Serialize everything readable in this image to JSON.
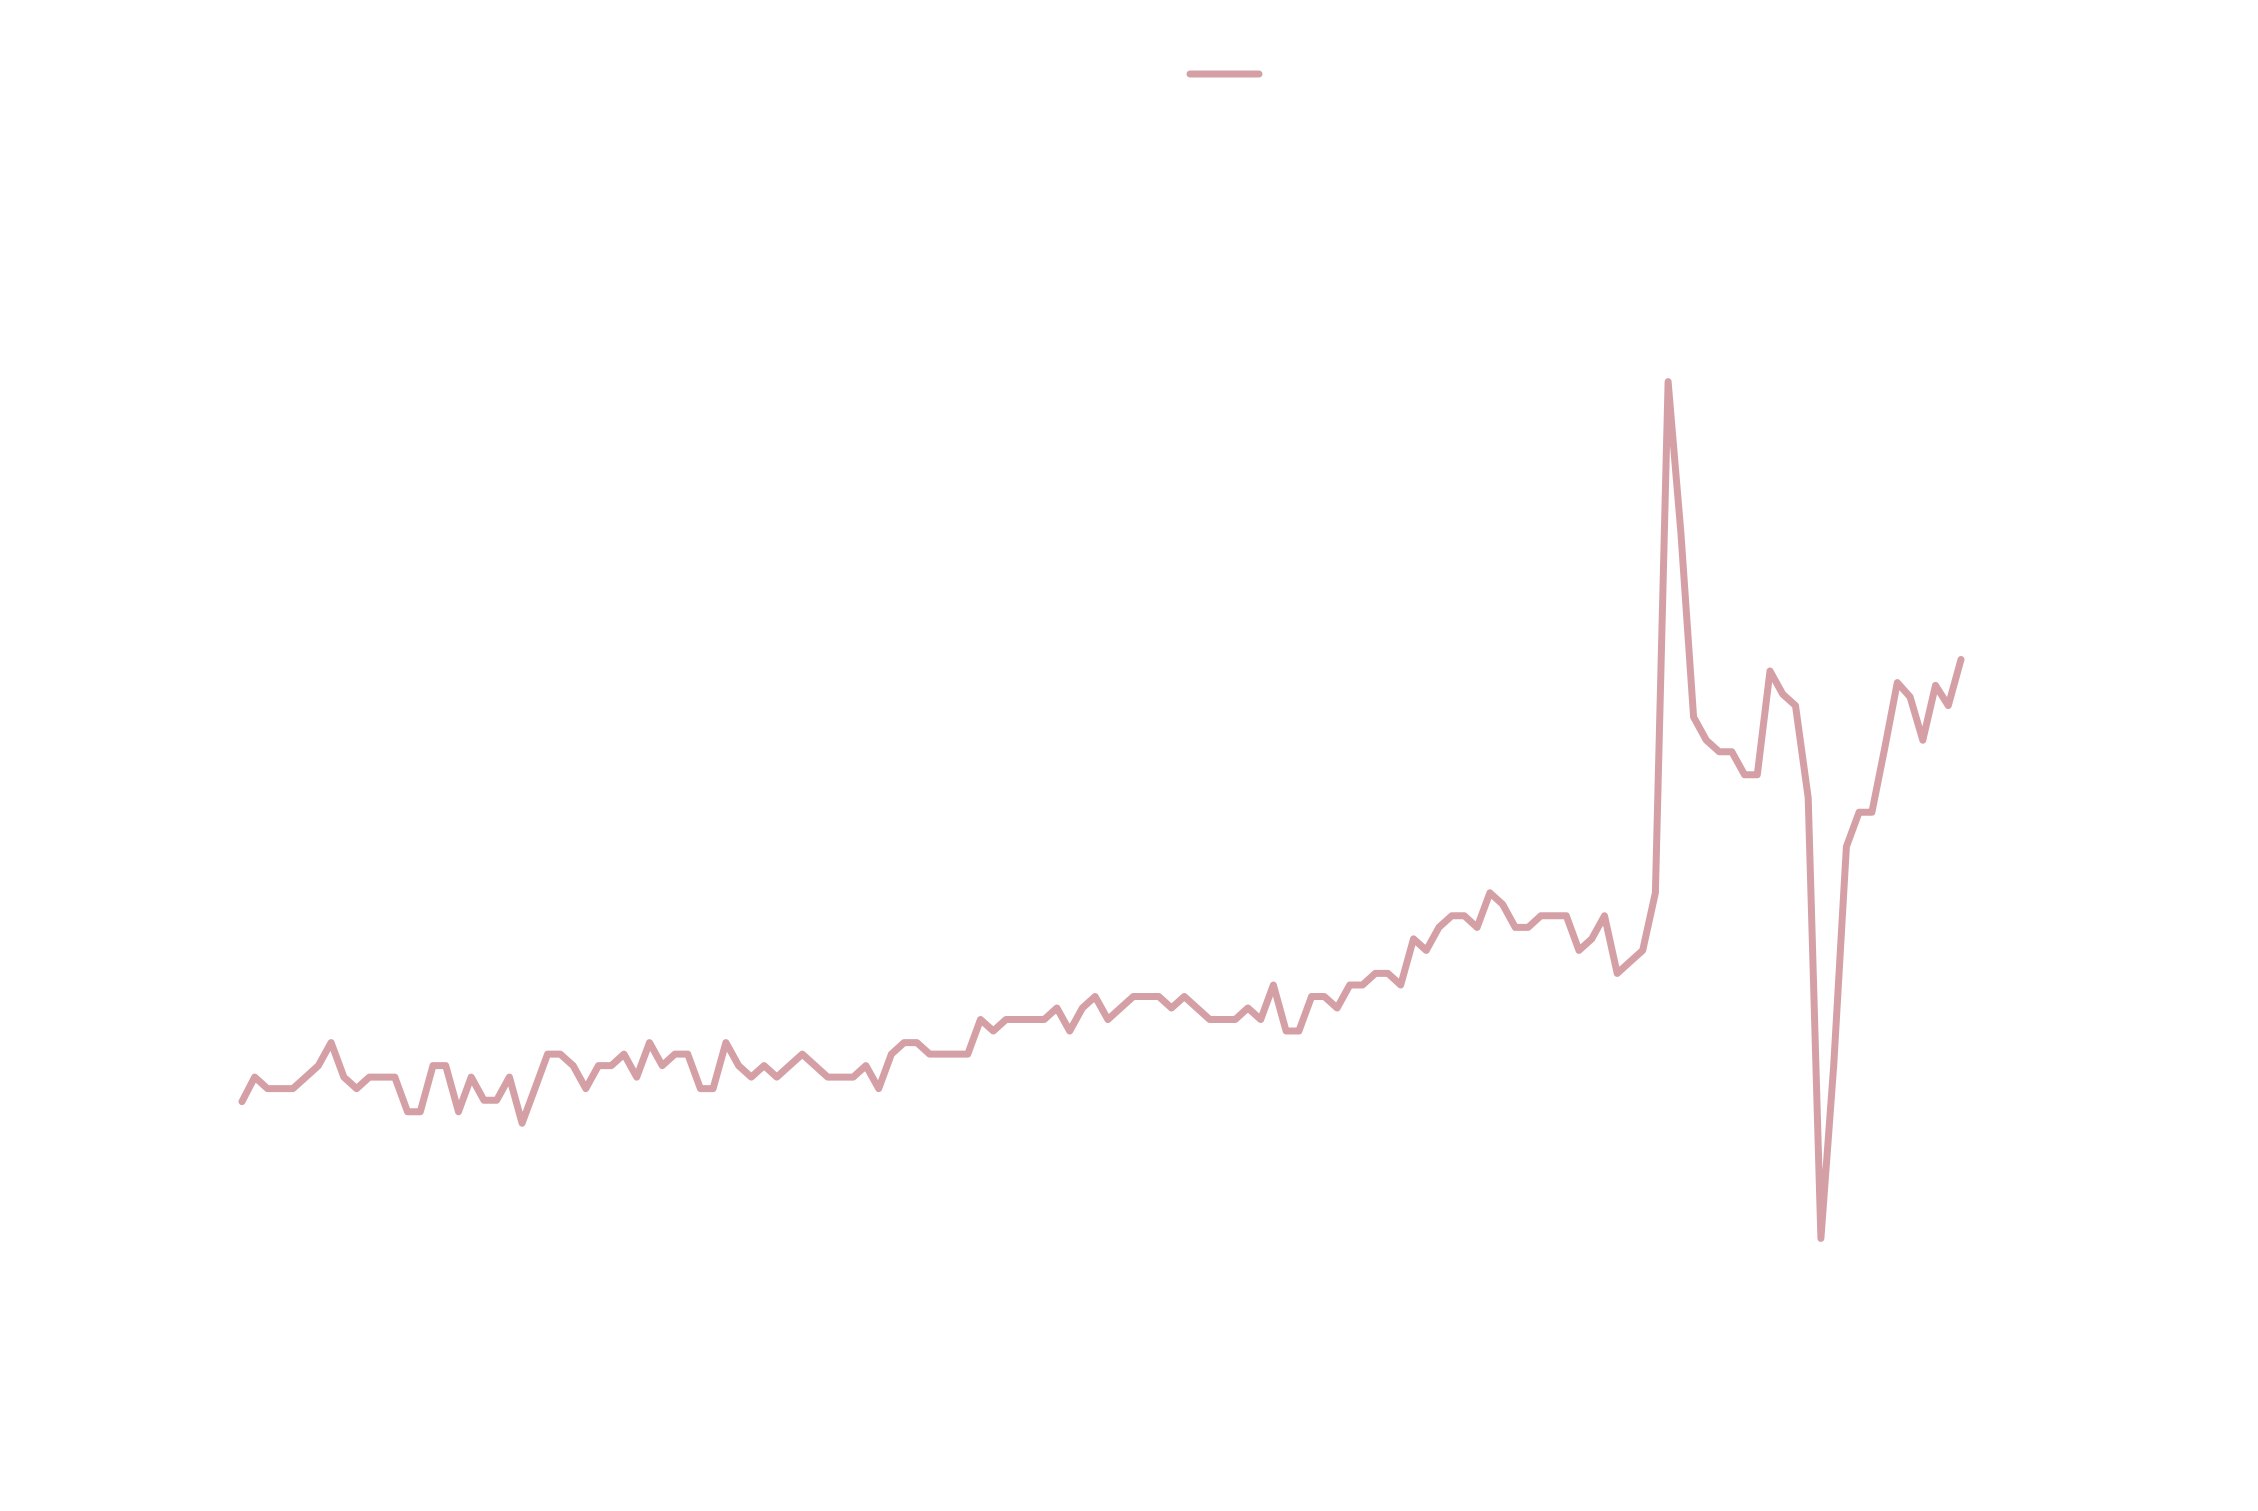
{
  "chart_data": {
    "type": "line",
    "series": [
      {
        "color": "#d4a0a6",
        "values": [
          23.5,
          25.2,
          24.4,
          24.4,
          24.4,
          25.2,
          26,
          27.6,
          25.2,
          24.4,
          25.2,
          25.2,
          25.2,
          22.8,
          22.8,
          26,
          26,
          22.8,
          25.2,
          23.6,
          23.6,
          25.2,
          22,
          24.4,
          26.8,
          26.8,
          26,
          24.4,
          26,
          26,
          26.8,
          25.2,
          27.6,
          26,
          26.8,
          26.8,
          24.4,
          24.4,
          27.6,
          26,
          25.2,
          26,
          25.2,
          26,
          26.8,
          26,
          25.2,
          25.2,
          25.2,
          26,
          24.4,
          26.8,
          27.6,
          27.6,
          26.8,
          26.8,
          26.8,
          26.8,
          29.2,
          28.4,
          29.2,
          29.2,
          29.2,
          29.2,
          30,
          28.4,
          30,
          30.8,
          29.2,
          30,
          30.8,
          30.8,
          30.8,
          30,
          30.8,
          30,
          29.2,
          29.2,
          29.2,
          30,
          29.2,
          31.6,
          28.4,
          28.4,
          30.8,
          30.8,
          30,
          31.6,
          31.6,
          32.4,
          32.4,
          31.6,
          34.8,
          34,
          35.6,
          36.4,
          36.4,
          35.6,
          38,
          37.2,
          35.6,
          35.6,
          36.4,
          36.4,
          36.4,
          34,
          34.8,
          36.4,
          32.4,
          33.2,
          34,
          38,
          73.5,
          63,
          50.2,
          48.6,
          47.8,
          47.8,
          46.2,
          46.2,
          53.4,
          51.8,
          51,
          44.6,
          14,
          26,
          41.2,
          43.6,
          43.6,
          48,
          52.6,
          51.6,
          48.6,
          52.4,
          51,
          54.2
        ]
      }
    ],
    "ylim": [
      0,
      100
    ]
  }
}
